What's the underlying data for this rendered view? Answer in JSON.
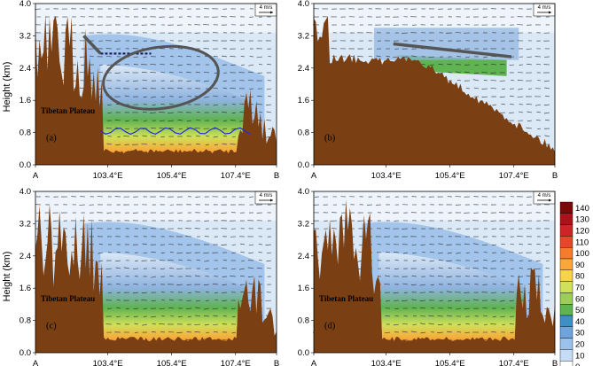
{
  "figure": {
    "y_axis_label": "Height (km)",
    "y_ticks": [
      "0.0",
      "0.8",
      "1.6",
      "2.4",
      "3.2",
      "4.0"
    ],
    "x_ticks": [
      "A",
      "103.4°E",
      "105.4°E",
      "107.4°E",
      "B"
    ],
    "reference_vector_label": "4 m/s",
    "terrain_label": "Tibetan Plateau",
    "terrain_color": "#7a3f12",
    "panels": [
      {
        "label": "(a)",
        "terrain_label": true,
        "annotations": [
          "dashed-line",
          "ellipse",
          "blue-contour"
        ]
      },
      {
        "label": "(b)",
        "terrain_label": false,
        "annotations": [
          "arrow-line"
        ]
      },
      {
        "label": "(c)",
        "terrain_label": true,
        "annotations": []
      },
      {
        "label": "(d)",
        "terrain_label": true,
        "annotations": []
      }
    ],
    "colorbar": {
      "levels": [
        "140",
        "130",
        "120",
        "110",
        "100",
        "90",
        "80",
        "70",
        "60",
        "50",
        "40",
        "30",
        "20",
        "10",
        "0"
      ],
      "colors": [
        "#7a0a0a",
        "#a8141a",
        "#cf2427",
        "#e8462a",
        "#f47c2c",
        "#f8a83a",
        "#f7d34a",
        "#cfe05a",
        "#9ccc5a",
        "#5fb351",
        "#3e8fc3",
        "#6fa3dc",
        "#9cc1ea",
        "#c6dcf4",
        "#ffffff"
      ]
    }
  }
}
